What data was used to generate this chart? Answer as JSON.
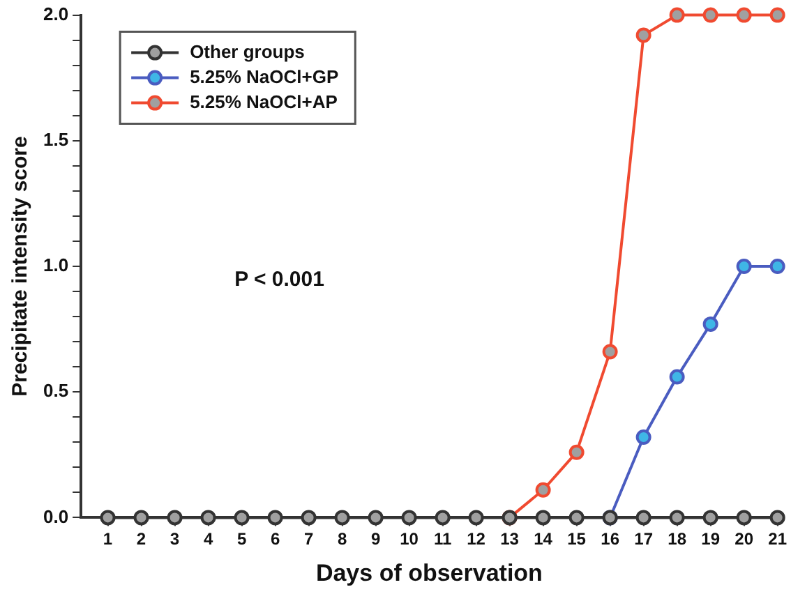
{
  "chart_data": {
    "type": "line",
    "xlabel": "Days of observation",
    "ylabel": "Precipitate intensity score",
    "x": [
      1,
      2,
      3,
      4,
      5,
      6,
      7,
      8,
      9,
      10,
      11,
      12,
      13,
      14,
      15,
      16,
      17,
      18,
      19,
      20,
      21
    ],
    "xlim": [
      0.2,
      21
    ],
    "xticks": [
      1,
      2,
      3,
      4,
      5,
      6,
      7,
      8,
      9,
      10,
      11,
      12,
      13,
      14,
      15,
      16,
      17,
      18,
      19,
      20,
      21
    ],
    "ylim": [
      0,
      2
    ],
    "yticks": [
      {
        "value": 0,
        "label": "0.0"
      },
      {
        "value": 0.1,
        "label": null
      },
      {
        "value": 0.2,
        "label": null
      },
      {
        "value": 0.3,
        "label": null
      },
      {
        "value": 0.4,
        "label": null
      },
      {
        "value": 0.5,
        "label": "0.5"
      },
      {
        "value": 0.6,
        "label": null
      },
      {
        "value": 0.7,
        "label": null
      },
      {
        "value": 0.8,
        "label": null
      },
      {
        "value": 0.9,
        "label": null
      },
      {
        "value": 1,
        "label": "1.0"
      },
      {
        "value": 1.1,
        "label": null
      },
      {
        "value": 1.2,
        "label": null
      },
      {
        "value": 1.3,
        "label": null
      },
      {
        "value": 1.4,
        "label": null
      },
      {
        "value": 1.5,
        "label": "1.5"
      },
      {
        "value": 1.6,
        "label": null
      },
      {
        "value": 1.7,
        "label": null
      },
      {
        "value": 1.8,
        "label": null
      },
      {
        "value": 1.9,
        "label": null
      },
      {
        "value": 2,
        "label": "2.0"
      }
    ],
    "series": [
      {
        "name": "Other groups",
        "color": "#333333",
        "values": [
          0,
          0,
          0,
          0,
          0,
          0,
          0,
          0,
          0,
          0,
          0,
          0,
          0,
          0,
          0,
          0,
          0,
          0,
          0,
          0,
          0
        ]
      },
      {
        "name": "5.25% NaOCl+GP",
        "color": "#4a5cc0",
        "values": [
          null,
          null,
          null,
          null,
          null,
          null,
          null,
          null,
          null,
          null,
          null,
          null,
          null,
          null,
          null,
          0,
          0.32,
          0.56,
          0.77,
          1,
          1
        ]
      },
      {
        "name": "5.25% NaOCl+AP",
        "color": "#f04a30",
        "values": [
          null,
          null,
          null,
          null,
          null,
          null,
          null,
          null,
          null,
          null,
          null,
          null,
          0,
          0.11,
          0.26,
          0.66,
          1.92,
          2,
          2,
          2,
          2
        ]
      }
    ],
    "annotations": [
      "P < 0.001"
    ],
    "legend": "top left",
    "marker": "circle",
    "line_style": "solid",
    "grid": false
  }
}
